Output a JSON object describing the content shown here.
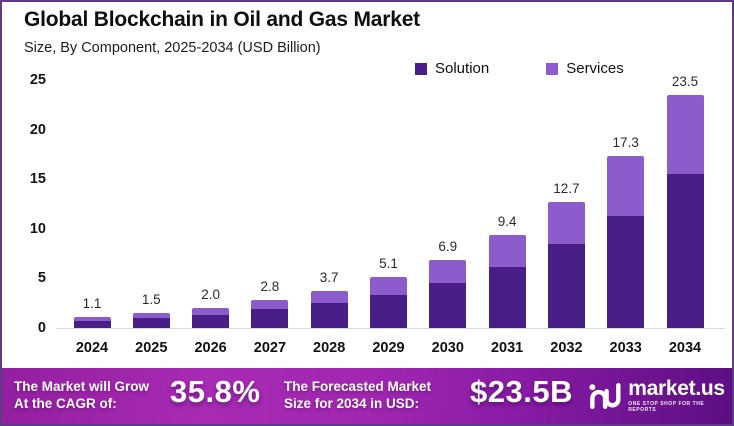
{
  "header": {
    "title": "Global Blockchain in Oil and Gas Market",
    "subtitle": "Size, By Component, 2025-2034 (USD Billion)"
  },
  "legend": {
    "items": [
      {
        "label": "Solution",
        "color": "#471f86"
      },
      {
        "label": "Services",
        "color": "#8c5ccc"
      }
    ]
  },
  "chart_data": {
    "type": "bar",
    "stacked": true,
    "title": "Global Blockchain in Oil and Gas Market",
    "subtitle": "Size, By Component, 2025-2034 (USD Billion)",
    "categories": [
      "2024",
      "2025",
      "2026",
      "2027",
      "2028",
      "2029",
      "2030",
      "2031",
      "2032",
      "2033",
      "2034"
    ],
    "series": [
      {
        "name": "Solution",
        "color": "#471f86",
        "values": [
          0.7,
          1.0,
          1.3,
          1.9,
          2.5,
          3.3,
          4.5,
          6.1,
          8.5,
          11.3,
          15.5
        ]
      },
      {
        "name": "Services",
        "color": "#8c5ccc",
        "values": [
          0.4,
          0.5,
          0.7,
          0.9,
          1.2,
          1.8,
          2.4,
          3.3,
          4.2,
          6.0,
          8.0
        ]
      }
    ],
    "totals": [
      1.1,
      1.5,
      2.0,
      2.8,
      3.7,
      5.1,
      6.9,
      9.4,
      12.7,
      17.3,
      23.5
    ],
    "total_labels": [
      "1.1",
      "1.5",
      "2.0",
      "2.8",
      "3.7",
      "5.1",
      "6.9",
      "9.4",
      "12.7",
      "17.3",
      "23.5"
    ],
    "y_ticks": [
      0,
      5,
      10,
      15,
      20,
      25
    ],
    "ylim": [
      0,
      25
    ],
    "xlabel": "",
    "ylabel": "",
    "grid": false,
    "legend_position": "top-right",
    "unit": "USD Billion"
  },
  "banner": {
    "cagr_label_line1": "The Market will Grow",
    "cagr_label_line2": "At the CAGR of:",
    "cagr_value": "35.8%",
    "forecast_label_line1": "The Forecasted Market",
    "forecast_label_line2": "Size for 2034 in USD:",
    "forecast_value": "$23.5B",
    "logo_text": "market.us",
    "logo_tagline": "ONE STOP SHOP FOR THE REPORTS"
  },
  "colors": {
    "solution": "#471f86",
    "services": "#8c5ccc",
    "border": "#5e3a87",
    "baseline": "#d9d9d9",
    "banner_gradient_start": "#931fa0",
    "banner_gradient_mid": "#a82bb4",
    "banner_gradient_end": "#5c0e82"
  }
}
